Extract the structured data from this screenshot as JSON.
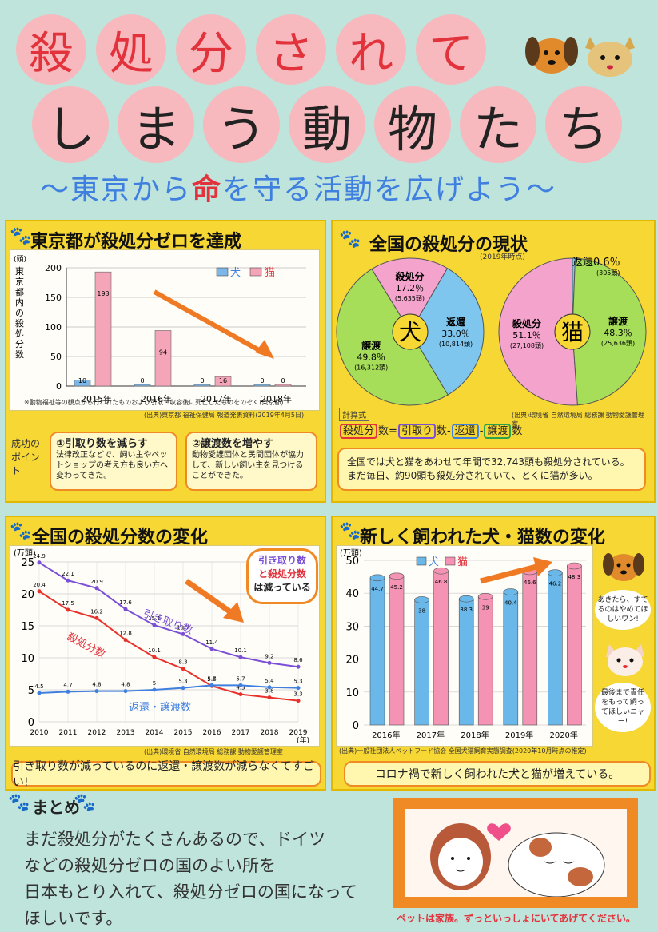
{
  "title": {
    "row1": [
      "殺",
      "処",
      "分",
      "さ",
      "れ",
      "て"
    ],
    "row2": [
      "し",
      "ま",
      "う",
      "動",
      "物",
      "た",
      "ち"
    ]
  },
  "subtitle": {
    "pre": "〜東京から",
    "emph": "命",
    "post": "を守る活動を広げよう〜"
  },
  "panel1": {
    "title": "東京都が殺処分ゼロを達成",
    "legend_dog": "犬",
    "legend_cat": "猫",
    "ylabel": "東京都内の殺処分数",
    "yunit": "(頭)",
    "footnote": "※動物福祉等の観点から行われたものおよび引取・収容後に死亡したものをのぞく(東京都)",
    "source": "(出典)東京都 福祉保健局 報道発表資料(2019年4月5日)",
    "points_label": "成功のポイント",
    "point1_title": "①引取り数を減らす",
    "point1_text": "法律改正などで、飼い主やペットショップの考え方も良い方へ変わってきた。",
    "point2_title": "②譲渡数を増やす",
    "point2_text": "動物愛護団体と民間団体が協力して、新しい飼い主を見つけることができた。"
  },
  "panel2": {
    "title": "全国の殺処分の現状",
    "year_note": "(2019年時点)",
    "dog_center": "犬",
    "cat_center": "猫",
    "dog_slices": [
      {
        "label": "殺処分",
        "pct": "17.2％",
        "count": "(5,635頭)"
      },
      {
        "label": "返還",
        "pct": "33.0％",
        "count": "(10,814頭)"
      },
      {
        "label": "譲渡",
        "pct": "49.8％",
        "count": "(16,312頭)"
      }
    ],
    "cat_slices": [
      {
        "label": "返還",
        "pct": "0.6％",
        "count": "(305頭)"
      },
      {
        "label": "譲渡",
        "pct": "48.3％",
        "count": "(25,636頭)"
      },
      {
        "label": "殺処分",
        "pct": "51.1％",
        "count": "(27,108頭)"
      }
    ],
    "formula_label": "計算式",
    "formula": [
      "殺処分",
      "数",
      "=",
      "引取り",
      "数",
      "-",
      "返還",
      "-",
      "譲渡",
      "数"
    ],
    "source": "(出典)環境省 自然環境局 総務課 動物愛護管理室",
    "summary": "全国では犬と猫をあわせて年間で32,743頭も殺処分されている。まだ毎日、約90頭も殺処分されていて、とくに猫が多い。"
  },
  "panel3": {
    "title": "全国の殺処分数の変化",
    "yunit": "(万頭)",
    "xunit": "(年)",
    "callout": [
      "引き取り数",
      "と殺処分数",
      "は減っている"
    ],
    "label_hikitori": "引き取り数",
    "label_satsu": "殺処分数",
    "label_henkan": "返還・譲渡数",
    "source": "(出典)環境省 自然環境局 総務課 動物愛護管理室",
    "summary": "引き取り数が減っているのに返還・譲渡数が減らなくてすごい!"
  },
  "panel4": {
    "title": "新しく飼われた犬・猫数の変化",
    "yunit": "(万頭)",
    "legend_dog": "犬",
    "legend_cat": "猫",
    "speech1": "あきたら、すてるのはやめてほしいワン!",
    "speech2": "最後まで責任をもって飼ってほしいニャー!",
    "source": "(出典)一般社団法人ペットフード協会 全国犬猫飼育実態調査(2020年10月時点の推定)",
    "summary": "コロナ禍で新しく飼われた犬と猫が増えている。"
  },
  "matome": {
    "title": "まとめ",
    "text": [
      "まだ殺処分がたくさんあるので、ドイツ",
      "などの殺処分ゼロの国のよい所を",
      "日本もとり入れて、殺処分ゼロの国になって",
      "ほしいです。"
    ]
  },
  "footer_caption": "ペットは家族。ずっといっしょにいてあげてください。",
  "chart_data": [
    {
      "type": "bar",
      "title": "東京都が殺処分ゼロを達成",
      "ylabel": "東京都内の殺処分数",
      "categories": [
        "2015年",
        "2016年",
        "2017年",
        "2018年"
      ],
      "series": [
        {
          "name": "犬",
          "values": [
            10,
            0,
            0,
            0
          ],
          "color": "#7db7e8"
        },
        {
          "name": "猫",
          "values": [
            193,
            94,
            16,
            0
          ],
          "color": "#f5a5b8"
        }
      ],
      "ylim": [
        0,
        200
      ],
      "yticks": [
        0,
        50,
        100,
        150,
        200
      ]
    },
    {
      "type": "pie",
      "title": "犬",
      "slices": [
        {
          "label": "殺処分",
          "value": 17.2,
          "color": "#f4a3cc"
        },
        {
          "label": "返還",
          "value": 33.0,
          "color": "#7fc6ef"
        },
        {
          "label": "譲渡",
          "value": 49.8,
          "color": "#a6de5a"
        }
      ]
    },
    {
      "type": "pie",
      "title": "猫",
      "slices": [
        {
          "label": "返還",
          "value": 0.6,
          "color": "#7fc6ef"
        },
        {
          "label": "譲渡",
          "value": 48.3,
          "color": "#a6de5a"
        },
        {
          "label": "殺処分",
          "value": 51.1,
          "color": "#f4a3cc"
        }
      ]
    },
    {
      "type": "line",
      "title": "全国の殺処分数の変化",
      "x": [
        2010,
        2011,
        2012,
        2013,
        2014,
        2015,
        2016,
        2017,
        2018,
        2019
      ],
      "series": [
        {
          "name": "引き取り数",
          "values": [
            24.9,
            22.1,
            20.9,
            17.6,
            15.1,
            13.7,
            11.4,
            10.1,
            9.2,
            8.6
          ],
          "color": "#7a4fd6"
        },
        {
          "name": "殺処分数",
          "values": [
            20.4,
            17.5,
            16.2,
            12.8,
            10.1,
            8.3,
            5.6,
            4.3,
            3.8,
            3.3
          ],
          "color": "#e8312b"
        },
        {
          "name": "返還・譲渡数",
          "values": [
            4.5,
            4.7,
            4.8,
            4.8,
            5.0,
            5.3,
            5.7,
            5.7,
            5.4,
            5.3
          ],
          "color": "#3f7fe0"
        }
      ],
      "ylim": [
        0,
        25
      ],
      "yticks": [
        0,
        5,
        10,
        15,
        20,
        25
      ]
    },
    {
      "type": "bar",
      "title": "新しく飼われた犬・猫数の変化",
      "categories": [
        "2016年",
        "2017年",
        "2018年",
        "2019年",
        "2020年"
      ],
      "series": [
        {
          "name": "犬",
          "values": [
            44.7,
            38.0,
            38.3,
            40.4,
            46.2
          ],
          "color": "#6ab8ea"
        },
        {
          "name": "猫",
          "values": [
            45.2,
            46.8,
            39.0,
            46.6,
            48.3
          ],
          "color": "#f493b4"
        }
      ],
      "ylim": [
        0,
        50
      ],
      "yticks": [
        0,
        10,
        20,
        30,
        40,
        50
      ]
    }
  ],
  "colors": {
    "background": "#bfe4dc",
    "title_circle": "#f7b9bd",
    "panel": "#f7d734",
    "red": "#e2333c",
    "blue": "#4a8fe0"
  }
}
